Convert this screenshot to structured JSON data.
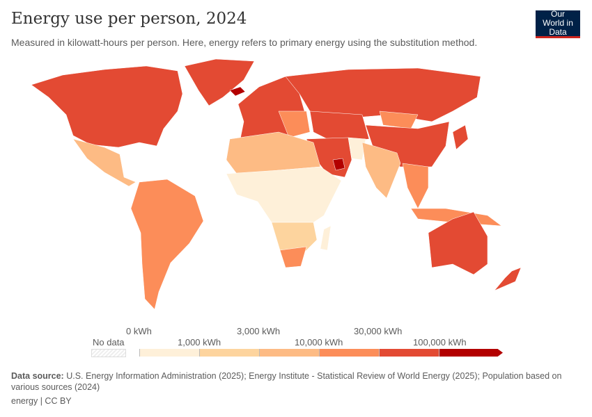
{
  "header": {
    "title": "Energy use per person, 2024",
    "subtitle": "Measured in kilowatt-hours per person. Here, energy refers to primary energy using the substitution method.",
    "logo": "Our World in Data"
  },
  "legend": {
    "no_data": "No data",
    "top_labels": [
      "0 kWh",
      "3,000 kWh",
      "30,000 kWh"
    ],
    "bottom_labels": [
      "1,000 kWh",
      "10,000 kWh",
      "100,000 kWh"
    ],
    "bins": [
      {
        "range": "0–1,000 kWh",
        "color": "#fef0d9"
      },
      {
        "range": "1,000–3,000 kWh",
        "color": "#fdd49e"
      },
      {
        "range": "3,000–10,000 kWh",
        "color": "#fdbb84"
      },
      {
        "range": "10,000–30,000 kWh",
        "color": "#fc8d59"
      },
      {
        "range": "30,000–100,000 kWh",
        "color": "#e34a33"
      },
      {
        "range": ">100,000 kWh",
        "color": "#b30000"
      }
    ]
  },
  "footer": {
    "source_label": "Data source:",
    "source_text": "U.S. Energy Information Administration (2025); Energy Institute - Statistical Review of World Energy (2025); Population based on various sources (2024)",
    "license": "energy | CC BY"
  }
}
